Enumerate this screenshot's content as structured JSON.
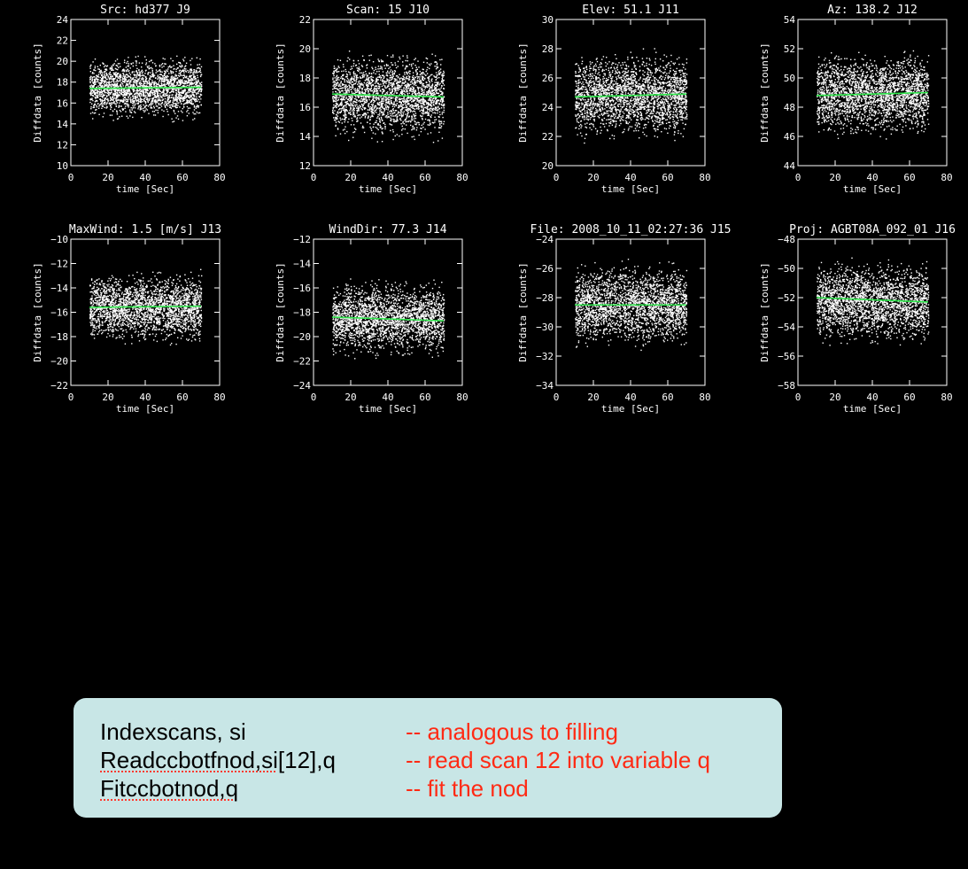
{
  "colors": {
    "background": "#000000",
    "points": "#ffffff",
    "fit_line": "#2ee64a",
    "code_box": "#c8e6e6",
    "comment_text": "#ff2a14"
  },
  "chart_data": [
    {
      "type": "scatter",
      "title": "Src: hd377 J9",
      "xlabel": "time [Sec]",
      "ylabel": "Diffdata [counts]",
      "xlim": [
        0,
        80
      ],
      "ylim": [
        10,
        24
      ],
      "xticks": [
        0,
        20,
        40,
        60,
        80
      ],
      "yticks": [
        10,
        12,
        14,
        16,
        18,
        20,
        22,
        24
      ],
      "xticklabels": [
        "0",
        "20",
        "40",
        "60",
        "80"
      ],
      "yticklabels": [
        "10",
        "12",
        "14",
        "16",
        "18",
        "20",
        "22",
        "24"
      ],
      "points_x_range": [
        10,
        70
      ],
      "points_center": 17.5,
      "points_halfwidth": 3.5,
      "fit_line": {
        "x": [
          10,
          70
        ],
        "y": [
          17.4,
          17.5
        ]
      }
    },
    {
      "type": "scatter",
      "title": "Scan: 15 J10",
      "xlabel": "time [Sec]",
      "ylabel": "Diffdata [counts]",
      "xlim": [
        0,
        80
      ],
      "ylim": [
        12,
        22
      ],
      "xticks": [
        0,
        20,
        40,
        60,
        80
      ],
      "yticks": [
        12,
        14,
        16,
        18,
        20,
        22
      ],
      "xticklabels": [
        "0",
        "20",
        "40",
        "60",
        "80"
      ],
      "yticklabels": [
        "12",
        "14",
        "16",
        "18",
        "20",
        "22"
      ],
      "points_x_range": [
        10,
        70
      ],
      "points_center": 16.8,
      "points_halfwidth": 3.3,
      "fit_line": {
        "x": [
          10,
          70
        ],
        "y": [
          16.9,
          16.7
        ]
      }
    },
    {
      "type": "scatter",
      "title": "Elev:  51.1 J11",
      "xlabel": "time [Sec]",
      "ylabel": "Diffdata [counts]",
      "xlim": [
        0,
        80
      ],
      "ylim": [
        20,
        30
      ],
      "xticks": [
        0,
        20,
        40,
        60,
        80
      ],
      "yticks": [
        20,
        22,
        24,
        26,
        28,
        30
      ],
      "xticklabels": [
        "0",
        "20",
        "40",
        "60",
        "80"
      ],
      "yticklabels": [
        "20",
        "22",
        "24",
        "26",
        "28",
        "30"
      ],
      "points_x_range": [
        10,
        70
      ],
      "points_center": 24.8,
      "points_halfwidth": 3.4,
      "fit_line": {
        "x": [
          10,
          70
        ],
        "y": [
          24.7,
          24.9
        ]
      }
    },
    {
      "type": "scatter",
      "title": "Az: 138.2 J12",
      "xlabel": "time [Sec]",
      "ylabel": "Diffdata [counts]",
      "xlim": [
        0,
        80
      ],
      "ylim": [
        44,
        54
      ],
      "xticks": [
        0,
        20,
        40,
        60,
        80
      ],
      "yticks": [
        44,
        46,
        48,
        50,
        52,
        54
      ],
      "xticklabels": [
        "0",
        "20",
        "40",
        "60",
        "80"
      ],
      "yticklabels": [
        "44",
        "46",
        "48",
        "50",
        "52",
        "54"
      ],
      "points_x_range": [
        10,
        70
      ],
      "points_center": 48.9,
      "points_halfwidth": 3.3,
      "fit_line": {
        "x": [
          10,
          70
        ],
        "y": [
          48.8,
          49.0
        ]
      }
    },
    {
      "type": "scatter",
      "title": "MaxWind:    1.5 [m/s]   J13",
      "xlabel": "time [Sec]",
      "ylabel": "Diffdata [counts]",
      "xlim": [
        0,
        80
      ],
      "ylim": [
        -22,
        -10
      ],
      "xticks": [
        0,
        20,
        40,
        60,
        80
      ],
      "yticks": [
        -22,
        -20,
        -18,
        -16,
        -14,
        -12,
        -10
      ],
      "xticklabels": [
        "0",
        "20",
        "40",
        "60",
        "80"
      ],
      "yticklabels": [
        "−22",
        "−20",
        "−18",
        "−16",
        "−14",
        "−12",
        "−10"
      ],
      "points_x_range": [
        10,
        70
      ],
      "points_center": -15.6,
      "points_halfwidth": 3.3,
      "fit_line": {
        "x": [
          10,
          70
        ],
        "y": [
          -15.6,
          -15.5
        ]
      }
    },
    {
      "type": "scatter",
      "title": "WindDir:  77.3 J14",
      "xlabel": "time [Sec]",
      "ylabel": "Diffdata [counts]",
      "xlim": [
        0,
        80
      ],
      "ylim": [
        -24,
        -12
      ],
      "xticks": [
        0,
        20,
        40,
        60,
        80
      ],
      "yticks": [
        -24,
        -22,
        -20,
        -18,
        -16,
        -14,
        -12
      ],
      "xticklabels": [
        "0",
        "20",
        "40",
        "60",
        "80"
      ],
      "yticklabels": [
        "−24",
        "−22",
        "−20",
        "−18",
        "−16",
        "−14",
        "−12"
      ],
      "points_x_range": [
        10,
        70
      ],
      "points_center": -18.5,
      "points_halfwidth": 3.6,
      "fit_line": {
        "x": [
          10,
          70
        ],
        "y": [
          -18.4,
          -18.7
        ]
      }
    },
    {
      "type": "scatter",
      "title": "File: 2008_10_11_02:27:36 J15",
      "xlabel": "time [Sec]",
      "ylabel": "Diffdata [counts]",
      "xlim": [
        0,
        80
      ],
      "ylim": [
        -34,
        -24
      ],
      "xticks": [
        0,
        20,
        40,
        60,
        80
      ],
      "yticks": [
        -34,
        -32,
        -30,
        -28,
        -26,
        -24
      ],
      "xticklabels": [
        "0",
        "20",
        "40",
        "60",
        "80"
      ],
      "yticklabels": [
        "−34",
        "−32",
        "−30",
        "−28",
        "−26",
        "−24"
      ],
      "points_x_range": [
        10,
        70
      ],
      "points_center": -28.5,
      "points_halfwidth": 3.3,
      "fit_line": {
        "x": [
          10,
          70
        ],
        "y": [
          -28.5,
          -28.5
        ]
      }
    },
    {
      "type": "scatter",
      "title": "Proj: AGBT08A_092_01 J16",
      "xlabel": "time [Sec]",
      "ylabel": "Diffdata [counts]",
      "xlim": [
        0,
        80
      ],
      "ylim": [
        -58,
        -48
      ],
      "xticks": [
        0,
        20,
        40,
        60,
        80
      ],
      "yticks": [
        -58,
        -56,
        -54,
        -52,
        -50,
        -48
      ],
      "xticklabels": [
        "0",
        "20",
        "40",
        "60",
        "80"
      ],
      "yticklabels": [
        "−58",
        "−56",
        "−54",
        "−52",
        "−50",
        "−48"
      ],
      "points_x_range": [
        10,
        70
      ],
      "points_center": -52.3,
      "points_halfwidth": 3.3,
      "fit_line": {
        "x": [
          10,
          70
        ],
        "y": [
          -52.0,
          -52.3
        ]
      }
    }
  ],
  "code_box": {
    "lines": [
      {
        "cmd": "Indexscans, si",
        "squiggle": "",
        "rest": "",
        "comment": "-- analogous to filling"
      },
      {
        "cmd": "",
        "squiggle": "Readccbotfnod,si",
        "rest": "[12],q",
        "comment": "-- read scan 12 into variable q"
      },
      {
        "cmd": "",
        "squiggle": "Fitccbotnod,q",
        "rest": "",
        "comment": "-- fit the nod"
      }
    ]
  }
}
